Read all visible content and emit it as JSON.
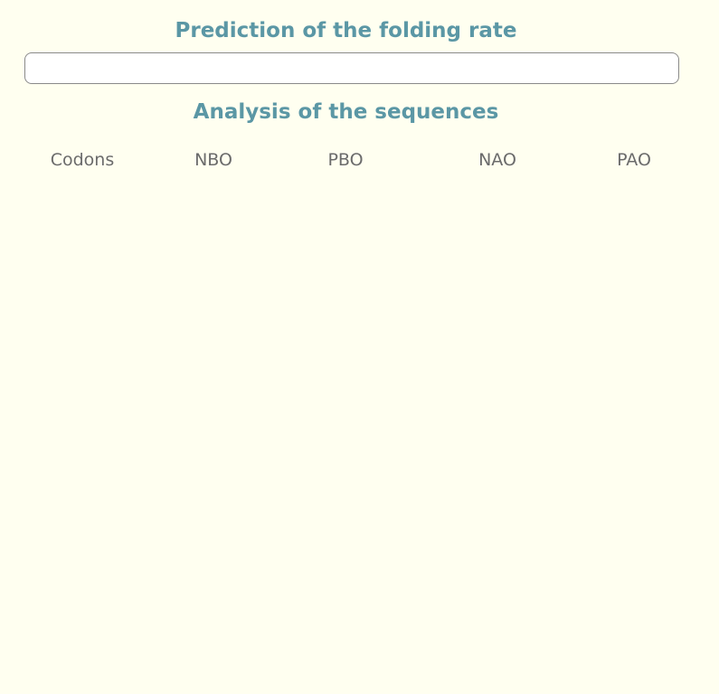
{
  "prediction": {
    "title": "Prediction of the folding rate",
    "result_value": ""
  },
  "analysis": {
    "title": "Analysis of the sequences",
    "columns": [
      "Codons",
      "NBO",
      "PBO",
      "NAO",
      "PAO"
    ]
  },
  "colors": {
    "background": "#fffff0",
    "heading": "#5b97a5",
    "column_text": "#6b6b6b",
    "box_border": "#8a8a8a"
  }
}
